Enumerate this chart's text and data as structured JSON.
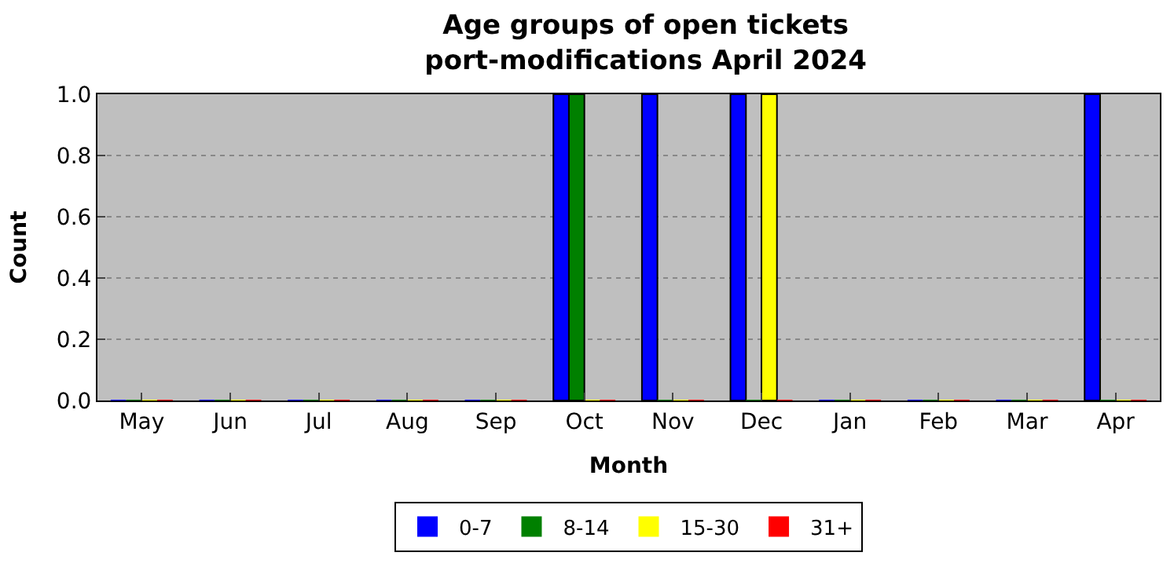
{
  "chart_data": {
    "type": "bar",
    "title": "Age groups of open tickets\nport-modifications April 2024",
    "xlabel": "Month",
    "ylabel": "Count",
    "categories": [
      "May",
      "Jun",
      "Jul",
      "Aug",
      "Sep",
      "Oct",
      "Nov",
      "Dec",
      "Jan",
      "Feb",
      "Mar",
      "Apr"
    ],
    "series": [
      {
        "name": "0-7",
        "color": "#0000ff",
        "values": [
          0,
          0,
          0,
          0,
          0,
          1,
          1,
          1,
          0,
          0,
          0,
          1
        ]
      },
      {
        "name": "8-14",
        "color": "#008000",
        "values": [
          0,
          0,
          0,
          0,
          0,
          1,
          0,
          0,
          0,
          0,
          0,
          0
        ]
      },
      {
        "name": "15-30",
        "color": "#ffff00",
        "values": [
          0,
          0,
          0,
          0,
          0,
          0,
          0,
          1,
          0,
          0,
          0,
          0
        ]
      },
      {
        "name": "31+",
        "color": "#ff0000",
        "values": [
          0,
          0,
          0,
          0,
          0,
          0,
          0,
          0,
          0,
          0,
          0,
          0
        ]
      }
    ],
    "ylim": [
      0,
      1
    ],
    "yticks": [
      {
        "value": 0,
        "label": "0.0"
      },
      {
        "value": 0.2,
        "label": "0.2"
      },
      {
        "value": 0.4,
        "label": "0.4"
      },
      {
        "value": 0.6,
        "label": "0.6"
      },
      {
        "value": 0.8,
        "label": "0.8"
      },
      {
        "value": 1,
        "label": "1.0"
      }
    ],
    "grid": "y",
    "legend": "bottom"
  }
}
